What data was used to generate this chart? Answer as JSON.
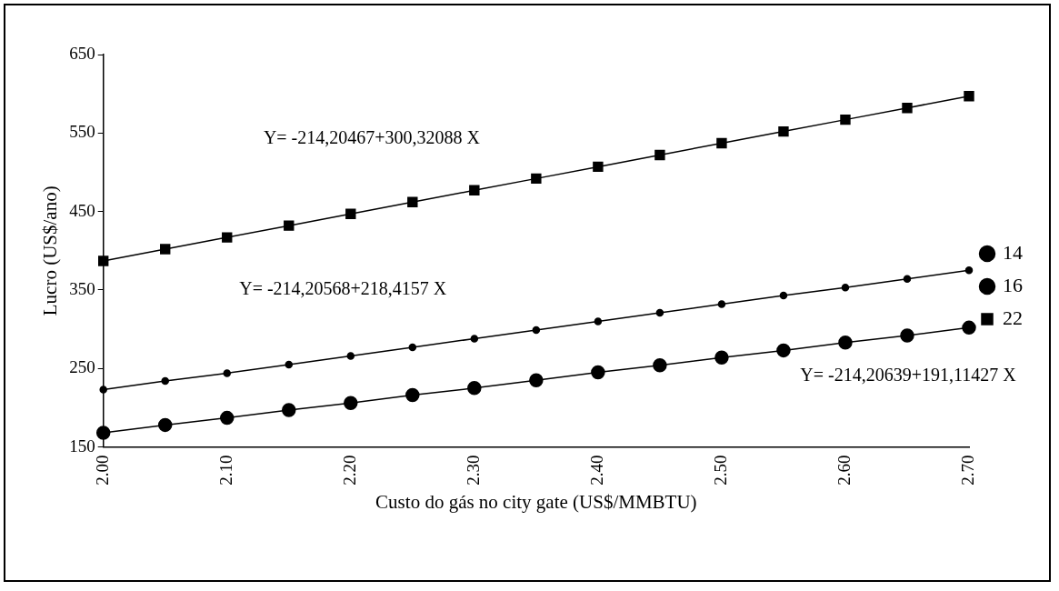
{
  "chart_data": {
    "type": "line",
    "xlabel": "Custo do gás no city gate (US$/MMBTU)",
    "ylabel": "Lucro (US$/ano)",
    "x": [
      2.0,
      2.05,
      2.1,
      2.15,
      2.2,
      2.25,
      2.3,
      2.35,
      2.4,
      2.45,
      2.5,
      2.55,
      2.6,
      2.65,
      2.7
    ],
    "series": [
      {
        "name": "14",
        "color": "#000000",
        "marker": "circle",
        "values": [
          168,
          178,
          187,
          197,
          206,
          216,
          225,
          235,
          245,
          254,
          264,
          273,
          283,
          292,
          302
        ]
      },
      {
        "name": "16",
        "color": "#000000",
        "marker": "circle",
        "values": [
          223,
          234,
          244,
          255,
          266,
          277,
          288,
          299,
          310,
          321,
          332,
          343,
          353,
          364,
          375
        ]
      },
      {
        "name": "22",
        "color": "#000000",
        "marker": "square",
        "values": [
          387,
          402,
          417,
          432,
          447,
          462,
          477,
          492,
          507,
          522,
          537,
          552,
          567,
          582,
          597
        ]
      }
    ],
    "xlim": [
      2.0,
      2.7
    ],
    "xticks": [
      {
        "value": 2.0,
        "label": "2.00"
      },
      {
        "value": 2.1,
        "label": "2.10"
      },
      {
        "value": 2.2,
        "label": "2.20"
      },
      {
        "value": 2.3,
        "label": "2.30"
      },
      {
        "value": 2.4,
        "label": "2.40"
      },
      {
        "value": 2.5,
        "label": "2.50"
      },
      {
        "value": 2.6,
        "label": "2.60"
      },
      {
        "value": 2.7,
        "label": "2.70"
      }
    ],
    "ylim": [
      150,
      650
    ],
    "yticks": [
      150,
      250,
      350,
      450,
      550,
      650
    ],
    "grid": false,
    "legend": "right",
    "line_style": "solid",
    "annotations": [
      "Y= -214,20467+300,32088 X",
      "Y= -214,20568+218,4157 X",
      "Y= -214,20639+191,11427 X"
    ]
  }
}
